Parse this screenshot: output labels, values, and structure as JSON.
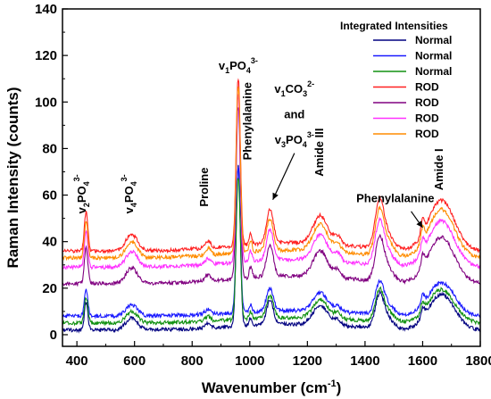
{
  "chart_data": {
    "type": "line",
    "xlabel": "Wavenumber (cm",
    "xlabel_sup": "-1",
    "xlabel_close": ")",
    "ylabel": "Raman Intensity (counts)",
    "xlim": [
      350,
      1800
    ],
    "ylim": [
      -5,
      140
    ],
    "xticks": [
      400,
      600,
      800,
      1000,
      1200,
      1400,
      1600,
      1800
    ],
    "yticks": [
      0,
      20,
      40,
      60,
      80,
      100,
      120,
      140
    ],
    "grid": false,
    "legend": {
      "title": "Integrated Intensities",
      "placement": "top-right"
    },
    "series": [
      {
        "name": "Normal",
        "color": "#000080",
        "baseline": 2,
        "peak": 71
      },
      {
        "name": "Normal",
        "color": "#1a1aff",
        "baseline": 8,
        "peak": 70
      },
      {
        "name": "Normal",
        "color": "#109010",
        "baseline": 5,
        "peak": 66
      },
      {
        "name": "ROD",
        "color": "#ff2020",
        "baseline": 36,
        "peak": 108
      },
      {
        "name": "ROD",
        "color": "#800080",
        "baseline": 22,
        "peak": 96
      },
      {
        "name": "ROD",
        "color": "#ff30ff",
        "baseline": 29,
        "peak": 101
      },
      {
        "name": "ROD",
        "color": "#ff8c00",
        "baseline": 33,
        "peak": 105
      }
    ],
    "annotations": [
      {
        "id": "v2po4",
        "base": "v",
        "sub1": "2",
        "mid": "PO",
        "sub2": "4",
        "sup": "3-",
        "x": 430,
        "y": 52,
        "rotate": -90
      },
      {
        "id": "v4po4",
        "base": "v",
        "sub1": "4",
        "mid": "PO",
        "sub2": "4",
        "sup": "3-",
        "x": 595,
        "y": 52,
        "rotate": -90
      },
      {
        "id": "proline",
        "text": "Proline",
        "x": 855,
        "y": 55,
        "rotate": -90
      },
      {
        "id": "v1po4",
        "base": "v",
        "sub1": "1",
        "mid": "PO",
        "sub2": "4",
        "sup": "3-",
        "x": 960,
        "y": 114,
        "rotate": 0
      },
      {
        "id": "phe1",
        "text": "Phenylalanine",
        "x": 1005,
        "y": 75,
        "rotate": -90
      },
      {
        "id": "v1co3",
        "base": "v",
        "sub1": "1",
        "mid": "CO",
        "sub2": "3",
        "sup": "2-",
        "x": 1155,
        "y": 104,
        "rotate": 0
      },
      {
        "id": "and",
        "text": "and",
        "x": 1155,
        "y": 93,
        "rotate": 0
      },
      {
        "id": "v3po4",
        "base": "v",
        "sub1": "3",
        "mid": "PO",
        "sub2": "4",
        "sup": "3-",
        "x": 1155,
        "y": 82,
        "rotate": 0
      },
      {
        "id": "amide3",
        "text": "Amide III",
        "x": 1255,
        "y": 68,
        "rotate": -90
      },
      {
        "id": "phe2",
        "text": "Phenylalanine",
        "x": 1505,
        "y": 57,
        "rotate": 0
      },
      {
        "id": "amide1",
        "text": "Amide I",
        "x": 1670,
        "y": 62,
        "rotate": -90
      }
    ],
    "arrows": [
      {
        "id": "arrow-co3",
        "from": [
          1155,
          78
        ],
        "to": [
          1080,
          58
        ]
      },
      {
        "id": "arrow-phe",
        "from": [
          1560,
          53
        ],
        "to": [
          1600,
          46
        ]
      }
    ]
  }
}
